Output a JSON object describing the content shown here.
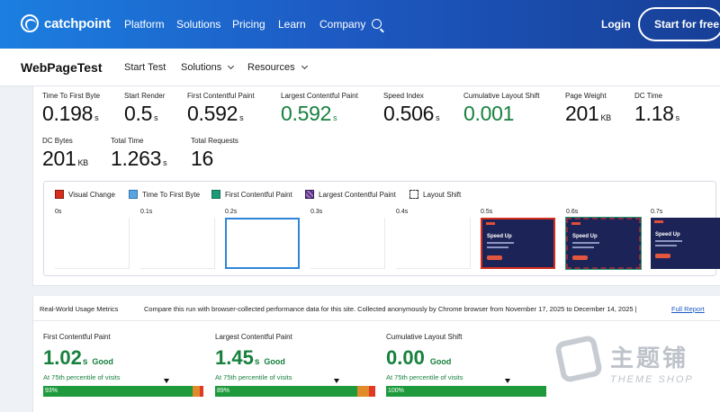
{
  "topnav": {
    "brand": "catchpoint",
    "links": [
      "Platform",
      "Solutions",
      "Pricing",
      "Learn",
      "Company"
    ],
    "login": "Login",
    "cta": "Start for free"
  },
  "subnav": {
    "title": "WebPageTest",
    "links": [
      "Start Test",
      "Solutions",
      "Resources"
    ]
  },
  "metrics": [
    {
      "label": "Time To First Byte",
      "value": "0.198",
      "unit": "s",
      "green": false
    },
    {
      "label": "Start Render",
      "value": "0.5",
      "unit": "s",
      "green": false
    },
    {
      "label": "First Contentful Paint",
      "value": "0.592",
      "unit": "s",
      "green": false
    },
    {
      "label": "Largest Contentful Paint",
      "value": "0.592",
      "unit": "s",
      "green": true
    },
    {
      "label": "Speed Index",
      "value": "0.506",
      "unit": "s",
      "green": false
    },
    {
      "label": "Cumulative Layout Shift",
      "value": "0.001",
      "unit": "",
      "green": true
    },
    {
      "label": "Page Weight",
      "value": "201",
      "unit": "KB",
      "green": false
    },
    {
      "label": "DC Time",
      "value": "1.18",
      "unit": "s",
      "green": false
    },
    {
      "label": "DC Bytes",
      "value": "201",
      "unit": "KB",
      "green": false
    },
    {
      "label": "Total Time",
      "value": "1.263",
      "unit": "s",
      "green": false
    },
    {
      "label": "Total Requests",
      "value": "16",
      "unit": "",
      "green": false
    }
  ],
  "legend": [
    "Visual Change",
    "Time To First Byte",
    "First Contentful Paint",
    "Largest Contentful Paint",
    "Layout Shift"
  ],
  "frames": [
    {
      "time": "0s",
      "kind": "blank"
    },
    {
      "time": "0.1s",
      "kind": "blank"
    },
    {
      "time": "0.2s",
      "kind": "fp"
    },
    {
      "time": "0.3s",
      "kind": "blank"
    },
    {
      "time": "0.4s",
      "kind": "blank"
    },
    {
      "time": "0.5s",
      "kind": "vc"
    },
    {
      "time": "0.6s",
      "kind": "ls"
    },
    {
      "time": "0.7s",
      "kind": "shot"
    }
  ],
  "frame_shot_title": "Speed Up",
  "realworld": {
    "title": "Real-World Usage Metrics",
    "description": "Compare this run with browser-collected performance data for this site. Collected anonymously by Chrome browser from November 17, 2025 to December 14, 2025 |",
    "link": "Full Report",
    "cards": [
      {
        "label": "First Contentful Paint",
        "value": "1.02",
        "unit": "s",
        "rating": "Good",
        "pct_text": "At 75th percentile of visits",
        "good": 93,
        "good_label": "93%",
        "ni": 5,
        "poor": 2,
        "marker": 0.75
      },
      {
        "label": "Largest Contentful Paint",
        "value": "1.45",
        "unit": "s",
        "rating": "Good",
        "pct_text": "At 75th percentile of visits",
        "good": 89,
        "good_label": "89%",
        "ni": 7,
        "poor": 4,
        "marker": 0.74
      },
      {
        "label": "Cumulative Layout Shift",
        "value": "0.00",
        "unit": "",
        "rating": "Good",
        "pct_text": "At 75th percentile of visits",
        "good": 100,
        "good_label": "100%",
        "ni": 0,
        "poor": 0,
        "marker": 0.74
      }
    ]
  },
  "watermark": {
    "cn": "主题铺",
    "en": "THEME SHOP"
  }
}
